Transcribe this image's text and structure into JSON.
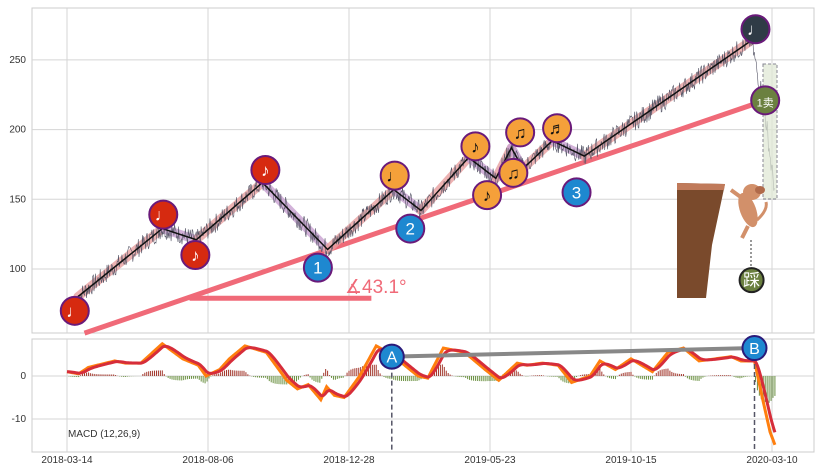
{
  "chart_data": [
    {
      "type": "line",
      "title": "",
      "ylabel": "",
      "ylim": [
        54,
        287
      ],
      "xlim_days": [
        -36,
        770
      ],
      "x_origin_date": "2018-03-14",
      "x_ticks": [
        {
          "day": 0,
          "label": "2018-03-14"
        },
        {
          "day": 145,
          "label": "2018-08-06"
        },
        {
          "day": 290,
          "label": "2018-12-28"
        },
        {
          "day": 435,
          "label": "2019-05-23"
        },
        {
          "day": 580,
          "label": "2019-10-15"
        },
        {
          "day": 725,
          "label": "2020-03-10"
        }
      ],
      "y_ticks": [
        100,
        150,
        200,
        250
      ],
      "zigzag": [
        [
          11,
          80
        ],
        [
          98,
          129
        ],
        [
          133,
          121
        ],
        [
          201,
          162
        ],
        [
          268,
          114
        ],
        [
          336,
          157
        ],
        [
          364,
          142
        ],
        [
          413,
          180
        ],
        [
          441,
          165
        ],
        [
          457,
          187
        ],
        [
          469,
          172
        ],
        [
          499,
          192
        ],
        [
          532,
          181
        ],
        [
          704,
          264
        ]
      ],
      "price_tail": [
        [
          704,
          264
        ],
        [
          710,
          240
        ],
        [
          715,
          225
        ],
        [
          720,
          200
        ],
        [
          724,
          175
        ],
        [
          728,
          156
        ]
      ],
      "trendline": {
        "from": [
          18,
          54
        ],
        "to": [
          718,
          221
        ],
        "angle_label": "∡43.1°",
        "baseline": {
          "from_day": 126,
          "to_day": 313,
          "value": 79
        }
      },
      "markers": [
        {
          "label": "♩",
          "color": "#d62a10",
          "day": 8,
          "value": 70
        },
        {
          "label": "♩",
          "color": "#d62a10",
          "day": 99,
          "value": 139
        },
        {
          "label": "♪",
          "color": "#d62a10",
          "day": 132,
          "value": 110
        },
        {
          "label": "♪",
          "color": "#d62a10",
          "day": 204,
          "value": 171
        },
        {
          "label": "1",
          "color": "#1e88d0",
          "day": 258,
          "value": 101
        },
        {
          "label": "♩",
          "color": "#f5a03a",
          "day": 337,
          "value": 167
        },
        {
          "label": "2",
          "color": "#1e88d0",
          "day": 353,
          "value": 129
        },
        {
          "label": "♪",
          "color": "#f5a03a",
          "day": 420,
          "value": 188
        },
        {
          "label": "♪",
          "color": "#f5a03a",
          "day": 432,
          "value": 153
        },
        {
          "label": "♫",
          "color": "#f5a03a",
          "day": 466,
          "value": 198
        },
        {
          "label": "♫",
          "color": "#f5a03a",
          "day": 459,
          "value": 169
        },
        {
          "label": "♬",
          "color": "#f5a03a",
          "day": 504,
          "value": 201
        },
        {
          "label": "3",
          "color": "#1e88d0",
          "day": 524,
          "value": 155
        },
        {
          "label": "♩",
          "color": "#2f3b46",
          "day": 708,
          "value": 272
        },
        {
          "label": "1卖",
          "color": "#6b8040",
          "day": 718,
          "value": 221
        }
      ],
      "step_marker": {
        "label": "踩",
        "day": 704,
        "value": 92
      }
    },
    {
      "type": "line",
      "title": "MACD (12,26,9)",
      "ylim": [
        -18,
        9
      ],
      "y_ticks": [
        0,
        -10
      ],
      "series": [
        {
          "name": "MACD",
          "color": "#ff7f0e",
          "points": [
            [
              0,
              1
            ],
            [
              12,
              0.5
            ],
            [
              22,
              2
            ],
            [
              49,
              3.5
            ],
            [
              60,
              3
            ],
            [
              76,
              3
            ],
            [
              98,
              7.5
            ],
            [
              119,
              4
            ],
            [
              135,
              2.5
            ],
            [
              143,
              0
            ],
            [
              157,
              1.5
            ],
            [
              167,
              4
            ],
            [
              183,
              7
            ],
            [
              205,
              5.5
            ],
            [
              226,
              -1
            ],
            [
              237,
              -3
            ],
            [
              248,
              -2
            ],
            [
              261,
              -5.5
            ],
            [
              267,
              -2.5
            ],
            [
              275,
              -4.5
            ],
            [
              285,
              -5
            ],
            [
              301,
              0
            ],
            [
              318,
              7
            ],
            [
              334,
              5
            ],
            [
              350,
              2
            ],
            [
              361,
              0
            ],
            [
              371,
              -0.5
            ],
            [
              387,
              6.5
            ],
            [
              409,
              5.5
            ],
            [
              430,
              1.5
            ],
            [
              444,
              -1
            ],
            [
              463,
              3
            ],
            [
              473,
              2.5
            ],
            [
              489,
              3
            ],
            [
              505,
              2.5
            ],
            [
              519,
              -1.5
            ],
            [
              538,
              0
            ],
            [
              548,
              3.5
            ],
            [
              564,
              1.5
            ],
            [
              580,
              4
            ],
            [
              602,
              1
            ],
            [
              618,
              5.5
            ],
            [
              634,
              6.5
            ],
            [
              650,
              3.5
            ],
            [
              667,
              4
            ],
            [
              683,
              4.5
            ],
            [
              693,
              3.5
            ],
            [
              707,
              3.5
            ],
            [
              715,
              -5
            ],
            [
              723,
              -13
            ],
            [
              728,
              -16
            ]
          ]
        },
        {
          "name": "Signal",
          "color": "#d62d3a"
        }
      ],
      "divergence": {
        "A": {
          "label": "A",
          "day": 334,
          "value": 4.5
        },
        "B": {
          "label": "B",
          "day": 707,
          "value": 6.5
        }
      },
      "label": "MACD (12,26,9)"
    }
  ]
}
